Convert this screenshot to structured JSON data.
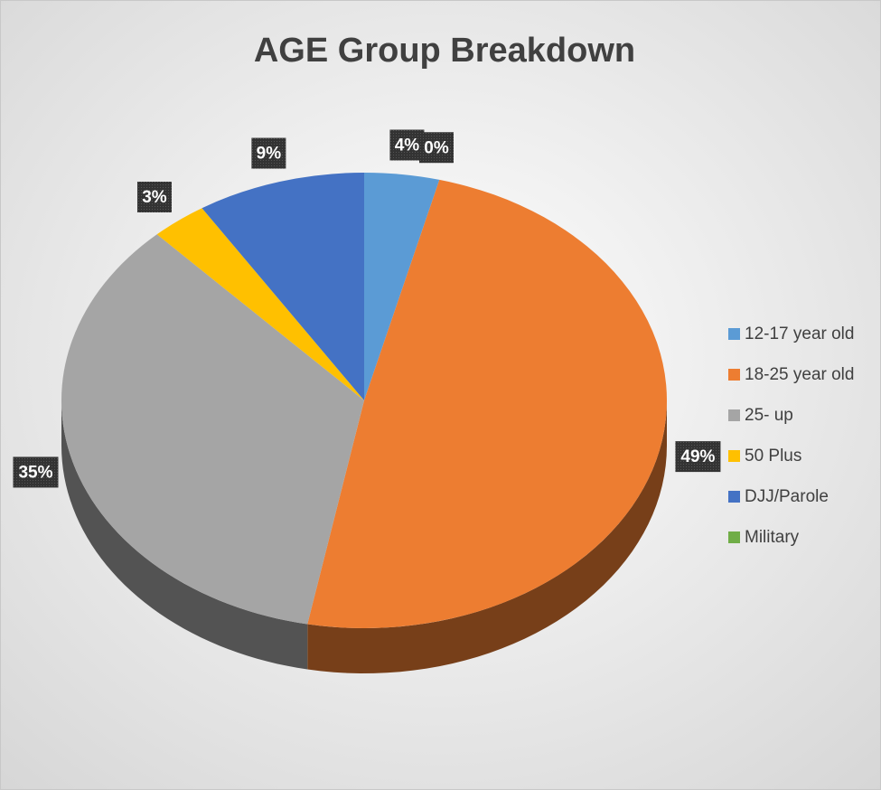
{
  "chart_data": {
    "type": "pie",
    "title": "AGE Group Breakdown",
    "categories": [
      "12-17 year old",
      "18-25 year old",
      "25- up",
      "50 Plus",
      "DJJ/Parole",
      "Military"
    ],
    "values": [
      4,
      49,
      35,
      3,
      9,
      0
    ],
    "value_labels": [
      "4%",
      "49%",
      "35%",
      "3%",
      "9%",
      "0%"
    ],
    "colors": [
      "#5b9bd5",
      "#ed7d31",
      "#a5a5a5",
      "#ffc000",
      "#4472c4",
      "#70ad47"
    ],
    "legend": "right"
  }
}
